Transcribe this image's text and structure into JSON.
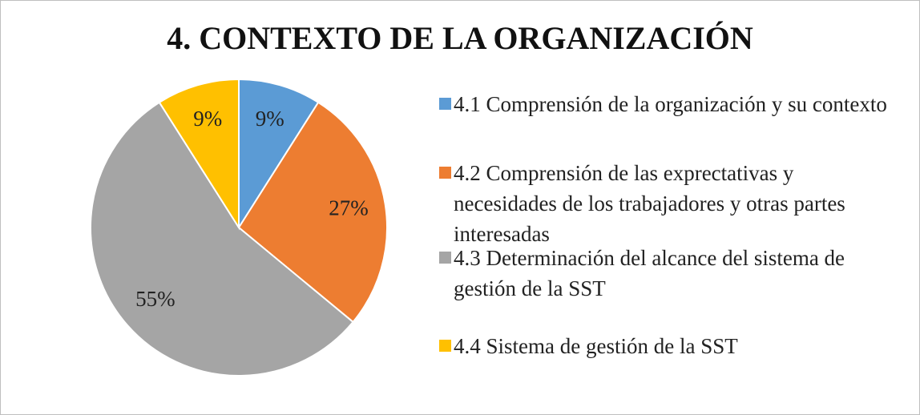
{
  "chart_data": {
    "type": "pie",
    "title": "4. CONTEXTO DE LA ORGANIZACIÓN",
    "categories": [
      "4.1 Comprensión de la organización y su contexto",
      "4.2 Comprensión de las exprectativas y necesidades de los trabajadores y otras partes interesadas",
      "4.3 Determinación del alcance del sistema de gestión de la SST",
      "4.4 Sistema de gestión de la SST"
    ],
    "values": [
      9,
      27,
      55,
      9
    ],
    "value_labels": [
      "9%",
      "27%",
      "55%",
      "9%"
    ],
    "colors": [
      "#5b9bd5",
      "#ed7d31",
      "#a5a5a5",
      "#ffc000"
    ],
    "legend": "right"
  }
}
